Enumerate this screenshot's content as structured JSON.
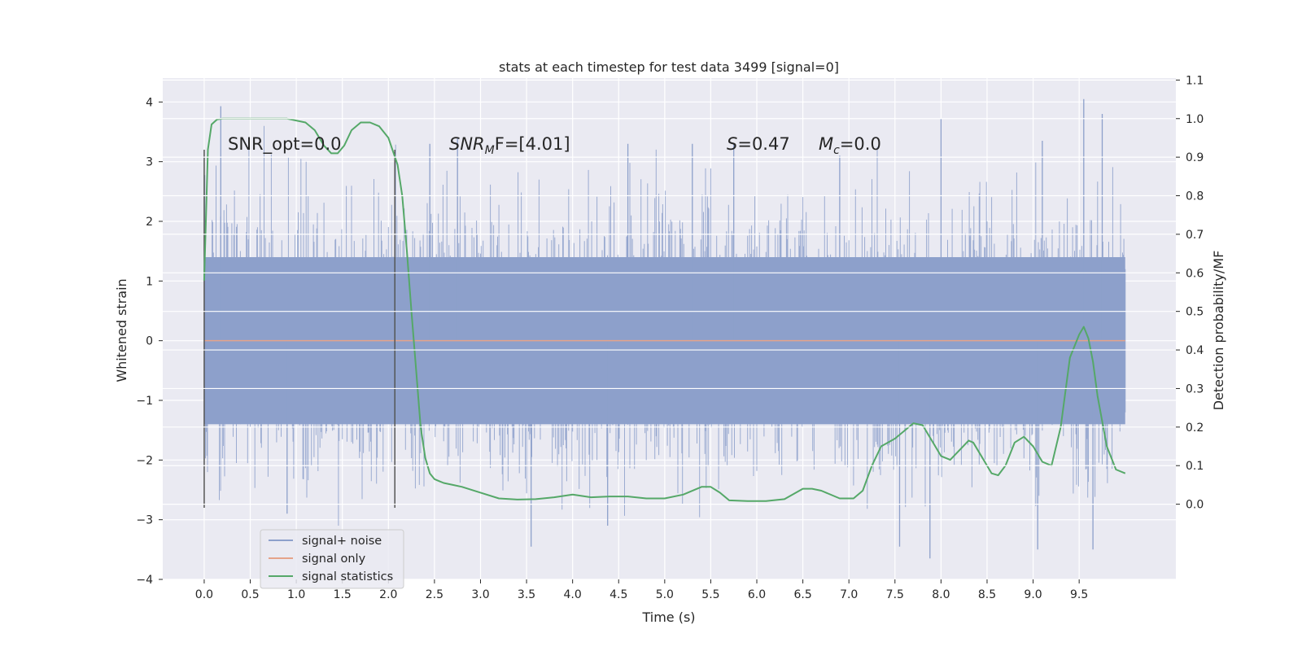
{
  "chart_data": {
    "type": "line",
    "title": "stats at each timestep for test data 3499 [signal=0]",
    "xlabel": "Time (s)",
    "ylabel": "Whitened strain",
    "y2label": "Detection probability/MF",
    "xlim": [
      -0.45,
      10.55
    ],
    "ylim": [
      -4.0,
      4.4
    ],
    "y2lim": [
      -0.195,
      1.105
    ],
    "xticks": [
      "0.0",
      "0.5",
      "1.0",
      "1.5",
      "2.0",
      "2.5",
      "3.0",
      "3.5",
      "4.0",
      "4.5",
      "5.0",
      "5.5",
      "6.0",
      "6.5",
      "7.0",
      "7.5",
      "8.0",
      "8.5",
      "9.0",
      "9.5"
    ],
    "yticks": [
      "4",
      "3",
      "2",
      "1",
      "0",
      "−1",
      "−2",
      "−3",
      "−4"
    ],
    "y2ticks": [
      "1.1",
      "1.0",
      "0.9",
      "0.8",
      "0.7",
      "0.6",
      "0.5",
      "0.4",
      "0.3",
      "0.2",
      "0.1",
      "0.0"
    ],
    "grid": true,
    "legend_position": "lower-left",
    "annotations": {
      "snr_opt": "SNR_opt=0.0",
      "snr_mf_base": "SNR",
      "snr_mf_sub": "M",
      "snr_mf_rest": "F=[4.01]",
      "s_label": "S",
      "s_value": "=0.47",
      "mc_base": "M",
      "mc_sub": "c",
      "mc_value": "=0.0"
    },
    "vlines": [
      {
        "x": 0.0,
        "y_from": -2.8,
        "y_to": 3.2
      },
      {
        "x": 2.07,
        "y_from": -2.8,
        "y_to": 3.2
      }
    ],
    "series": [
      {
        "name": "signal+ noise",
        "color": "#8da0cb",
        "render": "dense-noise",
        "x_range": [
          0.0,
          10.0
        ],
        "dense_band": [
          -1.4,
          1.4
        ],
        "spikes_pos": [
          [
            0.18,
            3.93
          ],
          [
            2.45,
            3.3
          ],
          [
            2.75,
            3.4
          ],
          [
            4.6,
            3.3
          ],
          [
            5.3,
            3.3
          ],
          [
            5.75,
            3.3
          ],
          [
            6.9,
            3.1
          ],
          [
            8.0,
            3.72
          ],
          [
            9.1,
            3.35
          ],
          [
            9.55,
            4.05
          ],
          [
            9.75,
            3.8
          ]
        ],
        "spikes_neg": [
          [
            0.9,
            -2.9
          ],
          [
            3.55,
            -3.45
          ],
          [
            4.38,
            -3.1
          ],
          [
            7.55,
            -3.45
          ],
          [
            7.88,
            -3.65
          ],
          [
            9.05,
            -3.5
          ],
          [
            9.65,
            -3.5
          ]
        ]
      },
      {
        "name": "signal only",
        "color": "#e5a38a",
        "x": [
          0.0,
          10.0
        ],
        "y": [
          0.0,
          0.0
        ]
      },
      {
        "name": "signal statistics",
        "color": "#55a868",
        "axis": "right",
        "x": [
          0.0,
          0.04,
          0.08,
          0.14,
          0.2,
          0.3,
          0.5,
          0.7,
          0.9,
          1.1,
          1.2,
          1.3,
          1.38,
          1.45,
          1.52,
          1.6,
          1.7,
          1.8,
          1.9,
          2.0,
          2.1,
          2.15,
          2.2,
          2.25,
          2.3,
          2.35,
          2.4,
          2.45,
          2.5,
          2.55,
          2.6,
          2.7,
          2.8,
          3.0,
          3.2,
          3.4,
          3.6,
          3.8,
          4.0,
          4.2,
          4.4,
          4.6,
          4.8,
          5.0,
          5.2,
          5.4,
          5.5,
          5.6,
          5.7,
          5.9,
          6.1,
          6.3,
          6.5,
          6.6,
          6.7,
          6.9,
          7.05,
          7.15,
          7.25,
          7.35,
          7.5,
          7.6,
          7.7,
          7.8,
          7.9,
          8.0,
          8.1,
          8.2,
          8.3,
          8.35,
          8.45,
          8.55,
          8.62,
          8.7,
          8.8,
          8.9,
          9.0,
          9.1,
          9.2,
          9.3,
          9.4,
          9.5,
          9.55,
          9.6,
          9.65,
          9.7,
          9.8,
          9.9,
          10.0
        ],
        "y": [
          0.58,
          0.92,
          0.985,
          0.998,
          1.0,
          1.0,
          1.0,
          1.0,
          1.0,
          0.99,
          0.97,
          0.93,
          0.91,
          0.91,
          0.93,
          0.97,
          0.99,
          0.99,
          0.98,
          0.95,
          0.88,
          0.8,
          0.66,
          0.5,
          0.35,
          0.2,
          0.12,
          0.08,
          0.065,
          0.06,
          0.055,
          0.05,
          0.045,
          0.03,
          0.015,
          0.012,
          0.013,
          0.018,
          0.025,
          0.018,
          0.02,
          0.02,
          0.015,
          0.015,
          0.025,
          0.045,
          0.045,
          0.03,
          0.01,
          0.008,
          0.008,
          0.013,
          0.04,
          0.04,
          0.035,
          0.015,
          0.015,
          0.035,
          0.1,
          0.15,
          0.17,
          0.19,
          0.21,
          0.205,
          0.165,
          0.125,
          0.115,
          0.14,
          0.165,
          0.16,
          0.12,
          0.08,
          0.075,
          0.1,
          0.16,
          0.175,
          0.15,
          0.11,
          0.1,
          0.2,
          0.38,
          0.44,
          0.46,
          0.43,
          0.37,
          0.28,
          0.15,
          0.09,
          0.08
        ]
      }
    ]
  }
}
